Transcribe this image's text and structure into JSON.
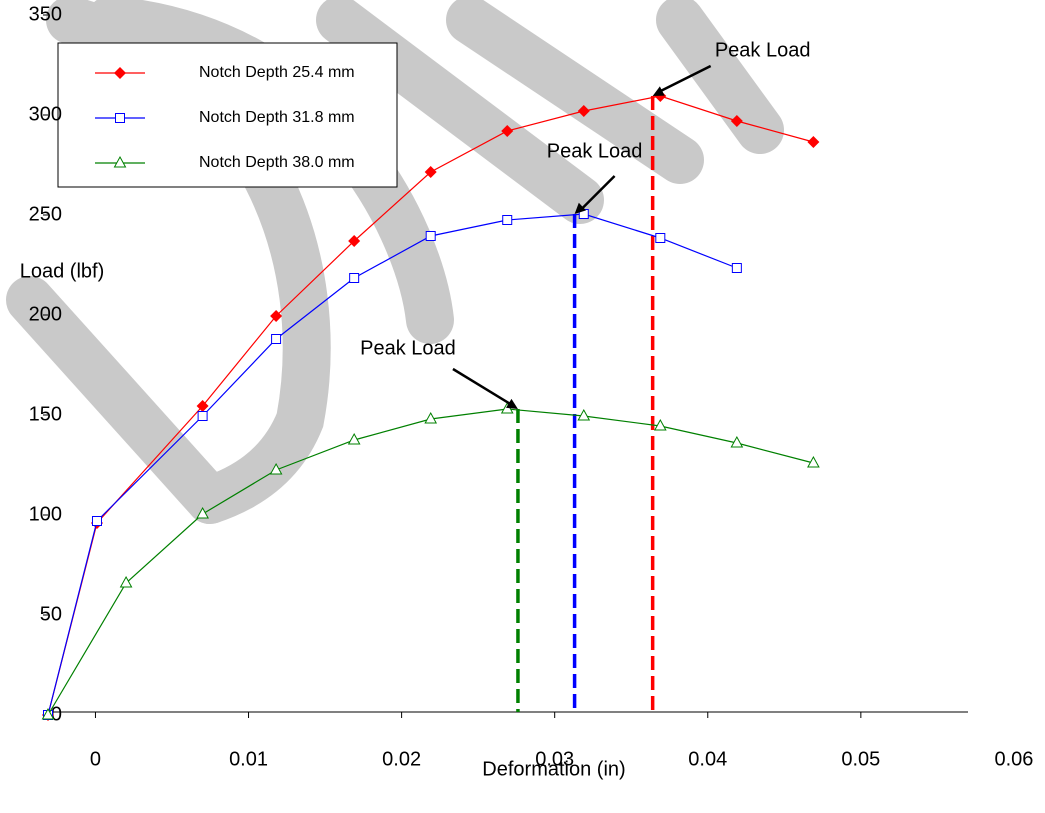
{
  "chart_data": {
    "type": "scatter",
    "x_label": "Deformation (in)",
    "y_label": "Load (lbf)",
    "xlim": [
      -0.0031,
      0.057
    ],
    "ylim": [
      0,
      350
    ],
    "xticks": [
      0,
      0.01,
      0.02,
      0.03,
      0.04,
      0.05,
      0.06
    ],
    "yticks": [
      0,
      50,
      100,
      150,
      200,
      250,
      300,
      350
    ],
    "series": [
      {
        "name": "Notch Depth 25.4 mm",
        "color": "#ff0000",
        "marker": "diamond",
        "x": [
          -0.0031,
          0.0001,
          0.007,
          0.0118,
          0.0169,
          0.0219,
          0.0269,
          0.0319,
          0.0369,
          0.0419,
          0.0469
        ],
        "values": [
          0,
          96,
          154.5,
          199.5,
          237,
          271.5,
          292,
          302,
          309.5,
          297,
          286.5
        ]
      },
      {
        "name": "Notch Depth 31.8 mm",
        "color": "#0000ff",
        "marker": "square",
        "x": [
          -0.0031,
          0.0001,
          0.007,
          0.0118,
          0.0169,
          0.0219,
          0.0269,
          0.0319,
          0.0369,
          0.0419
        ],
        "values": [
          0,
          97,
          149.5,
          188,
          218.5,
          239.5,
          247.5,
          250.5,
          238.5,
          223.5
        ]
      },
      {
        "name": "Notch Depth 38.0 mm",
        "color": "#008000",
        "marker": "triangle",
        "x": [
          -0.0031,
          0.002,
          0.007,
          0.0118,
          0.0169,
          0.0219,
          0.0269,
          0.0319,
          0.0369,
          0.0419,
          0.0469
        ],
        "values": [
          0,
          66,
          100.5,
          122.5,
          137.5,
          148,
          153,
          149.5,
          144.5,
          136,
          126
        ]
      }
    ],
    "annotations": [
      {
        "text": "Peak Load",
        "x": 0.0364,
        "y": 309.5,
        "color": "#ff0000"
      },
      {
        "text": "Peak Load",
        "x": 0.0313,
        "y": 250.5,
        "color": "#0000ff"
      },
      {
        "text": "Peak Load",
        "x": 0.0276,
        "y": 153,
        "color": "#008000"
      }
    ]
  }
}
